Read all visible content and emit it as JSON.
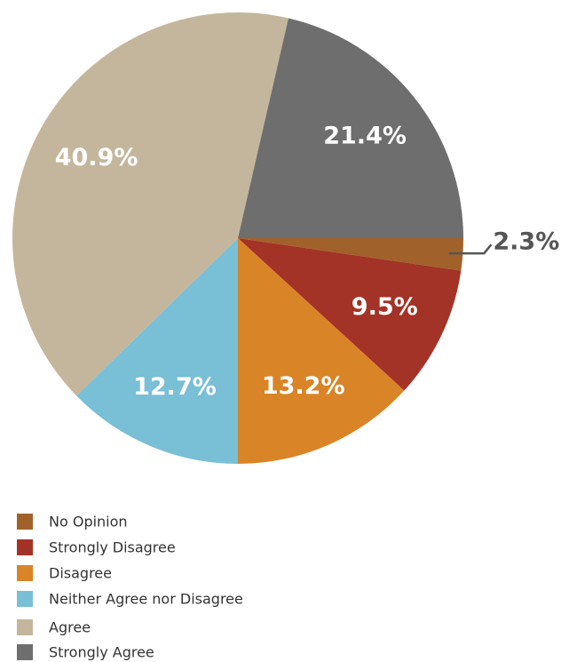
{
  "chart_data": {
    "type": "pie",
    "categories": [
      "No Opinion",
      "Strongly Disagree",
      "Disagree",
      "Neither Agree nor Disagree",
      "Agree",
      "Strongly Agree"
    ],
    "values": [
      2.3,
      9.5,
      13.2,
      12.7,
      40.9,
      21.4
    ],
    "value_labels": [
      "2.3%",
      "9.5%",
      "13.2%",
      "12.7%",
      "40.9%",
      "21.4%"
    ],
    "colors": [
      "#a0622a",
      "#a33327",
      "#d98427",
      "#79bfd6",
      "#c4b69c",
      "#6e6e6e"
    ],
    "legend": "bottom-left"
  }
}
